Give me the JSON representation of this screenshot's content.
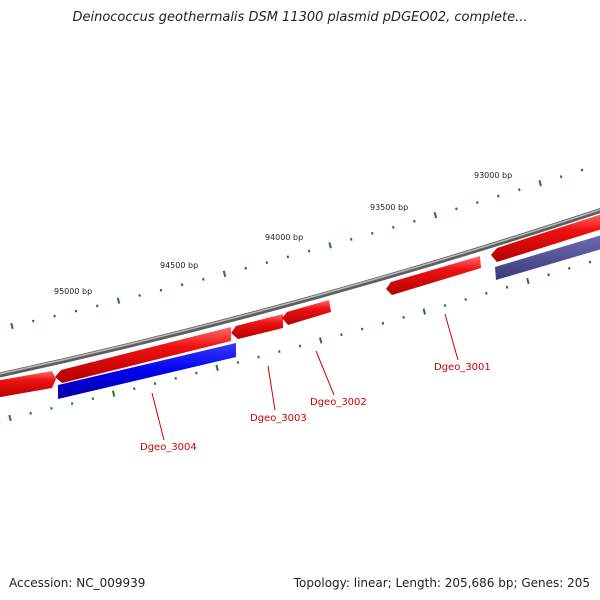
{
  "title": "Deinococcus geothermalis DSM 11300 plasmid pDGEO02, complete...",
  "footer": {
    "accession": "Accession: NC_009939",
    "summary": "Topology: linear; Length: 205,686 bp; Genes: 205"
  },
  "colors": {
    "backbone": "#7a7a7a",
    "forward_gene": "#e41a1c",
    "reverse_gene": "#0000ee",
    "reverse_gene_muted": "#4b4a8e",
    "tick": "#1e7d1e",
    "label": "#cc0000"
  },
  "ticks": [
    {
      "label": "95000 bp"
    },
    {
      "label": "94500 bp"
    },
    {
      "label": "94000 bp"
    },
    {
      "label": "93500 bp"
    },
    {
      "label": "93000 bp"
    }
  ],
  "gene_labels": [
    {
      "name": "Dgeo_3001"
    },
    {
      "name": "Dgeo_3002"
    },
    {
      "name": "Dgeo_3003"
    },
    {
      "name": "Dgeo_3004"
    }
  ]
}
